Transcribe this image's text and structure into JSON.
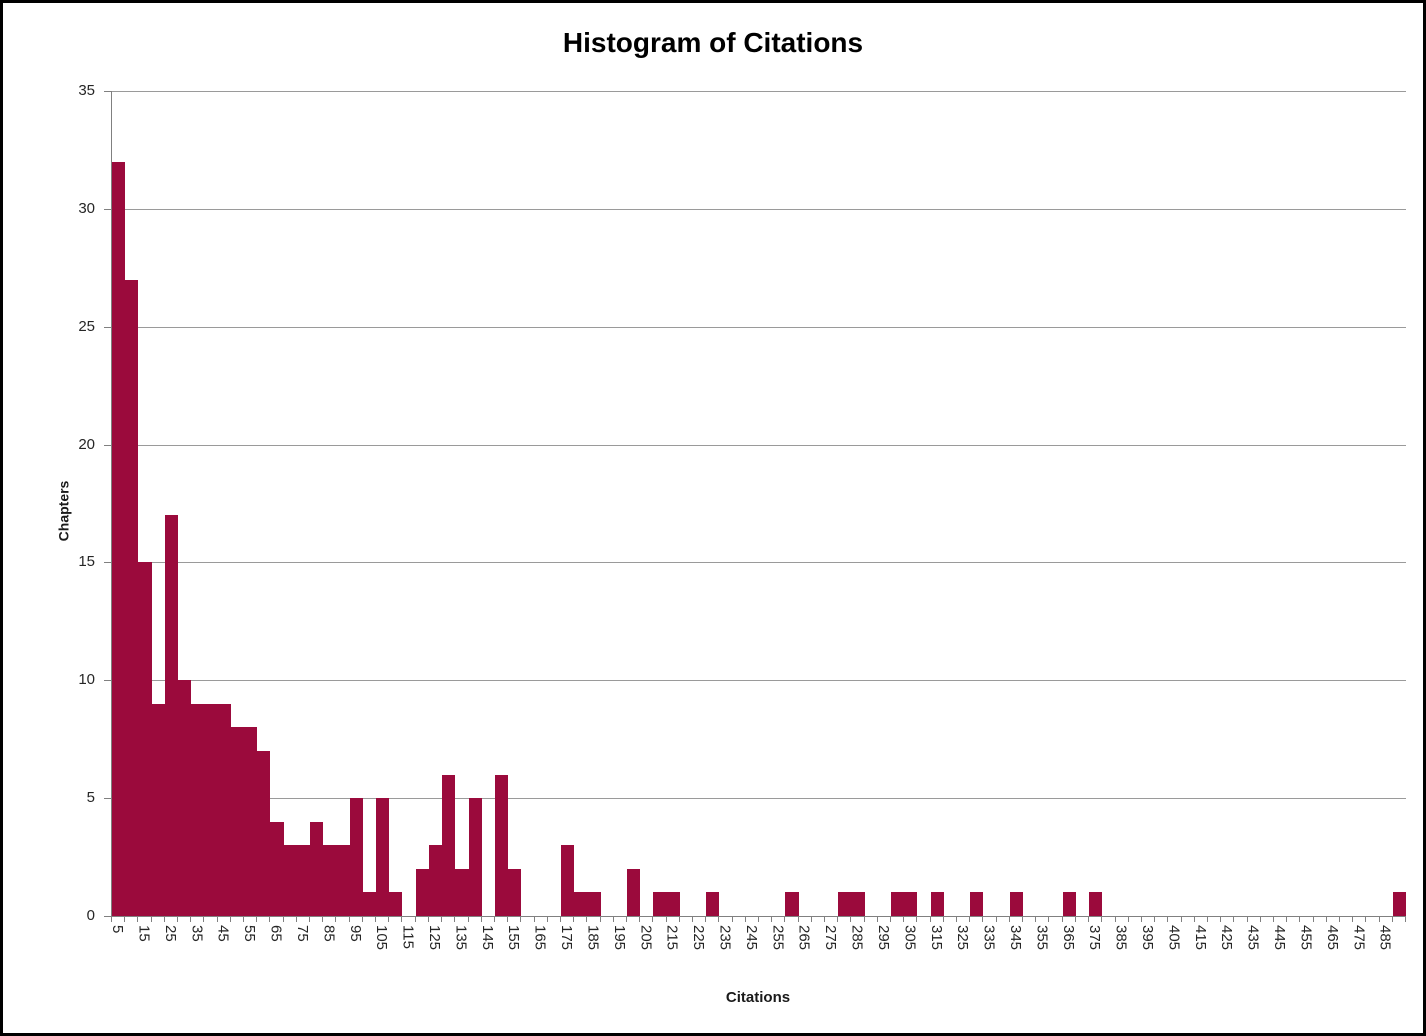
{
  "chart_data": {
    "type": "bar",
    "title": "Histogram of Citations",
    "xlabel": "Citations",
    "ylabel": "Chapters",
    "bin_width": 5,
    "categories": [
      5,
      10,
      15,
      20,
      25,
      30,
      35,
      40,
      45,
      50,
      55,
      60,
      65,
      70,
      75,
      80,
      85,
      90,
      95,
      100,
      105,
      110,
      115,
      120,
      125,
      130,
      135,
      140,
      145,
      150,
      155,
      160,
      165,
      170,
      175,
      180,
      185,
      190,
      195,
      200,
      205,
      210,
      215,
      220,
      225,
      230,
      235,
      240,
      245,
      250,
      255,
      260,
      265,
      270,
      275,
      280,
      285,
      290,
      295,
      300,
      305,
      310,
      315,
      320,
      325,
      330,
      335,
      340,
      345,
      350,
      355,
      360,
      365,
      370,
      375,
      380,
      385,
      390,
      395,
      400,
      405,
      410,
      415,
      420,
      425,
      430,
      435,
      440,
      445,
      450,
      455,
      460,
      465,
      470,
      475,
      480,
      485,
      490
    ],
    "values": [
      32,
      27,
      15,
      9,
      17,
      10,
      9,
      9,
      9,
      8,
      8,
      7,
      4,
      3,
      3,
      4,
      3,
      3,
      5,
      1,
      5,
      1,
      0,
      2,
      3,
      6,
      2,
      5,
      0,
      6,
      2,
      0,
      0,
      0,
      3,
      1,
      1,
      0,
      0,
      2,
      0,
      1,
      1,
      0,
      0,
      1,
      0,
      0,
      0,
      0,
      0,
      1,
      0,
      0,
      0,
      1,
      1,
      0,
      0,
      1,
      1,
      0,
      1,
      0,
      0,
      1,
      0,
      0,
      1,
      0,
      0,
      0,
      1,
      0,
      1,
      0,
      0,
      0,
      0,
      0,
      0,
      0,
      0,
      0,
      0,
      0,
      0,
      0,
      0,
      0,
      0,
      0,
      0,
      0,
      0,
      0,
      0,
      1
    ],
    "x_label_interval": 2,
    "x_tick_labels": [
      5,
      15,
      25,
      35,
      45,
      55,
      65,
      75,
      85,
      95,
      105,
      115,
      125,
      135,
      145,
      155,
      165,
      175,
      185,
      195,
      205,
      215,
      225,
      235,
      245,
      255,
      265,
      275,
      285,
      295,
      305,
      315,
      325,
      335,
      345,
      355,
      365,
      375,
      385,
      395,
      405,
      415,
      425,
      435,
      445,
      455,
      465,
      475,
      485
    ],
    "ylim": [
      0,
      35
    ],
    "y_ticks": [
      0,
      5,
      10,
      15,
      20,
      25,
      30,
      35
    ],
    "grid": "horizontal",
    "legend": "none",
    "bar_color": "#9B0A3C",
    "gridline_color": "#9A9A9A",
    "axis_color": "#808080",
    "text_color": "#262626",
    "background_color": "#FFFFFF",
    "border_color": "#000000"
  }
}
